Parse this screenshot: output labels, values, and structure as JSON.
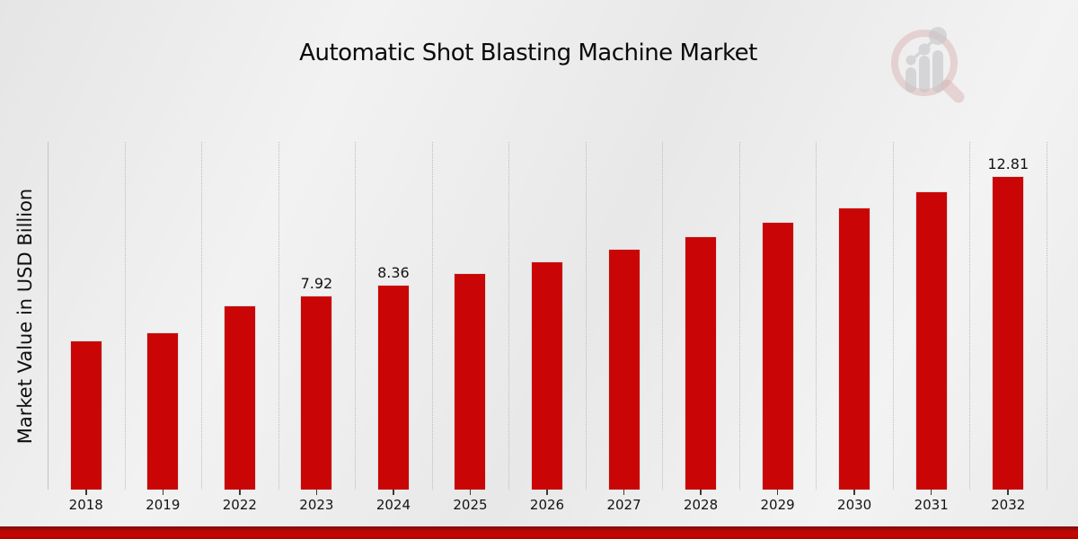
{
  "page": {
    "title": "Automatic Shot Blasting Machine Market"
  },
  "chart_data": {
    "type": "bar",
    "title": "Automatic Shot Blasting Machine Market",
    "xlabel": "",
    "ylabel": "Market Value in USD Billion",
    "categories": [
      "2018",
      "2019",
      "2022",
      "2023",
      "2024",
      "2025",
      "2026",
      "2027",
      "2028",
      "2029",
      "2030",
      "2031",
      "2032"
    ],
    "values": [
      6.09,
      6.42,
      7.51,
      7.92,
      8.36,
      8.83,
      9.31,
      9.82,
      10.36,
      10.94,
      11.54,
      12.17,
      12.81
    ],
    "data_labels": [
      "",
      "",
      "",
      "7.92",
      "8.36",
      "",
      "",
      "",
      "",
      "",
      "",
      "",
      "12.81"
    ],
    "ylim": [
      0,
      14.2
    ],
    "grid": "vertical-dotted",
    "legend": "none",
    "bar_color": "#c90505",
    "label_color": "#141414"
  },
  "branding": {
    "watermark_icon": "magnifier-bar-chart-logo",
    "accent_stripe_color": "#c20404",
    "accent_stripe_edge_color": "#8a0c0c",
    "watermark_pink": "#d5a8a8",
    "watermark_gray": "#b9b9bd"
  }
}
